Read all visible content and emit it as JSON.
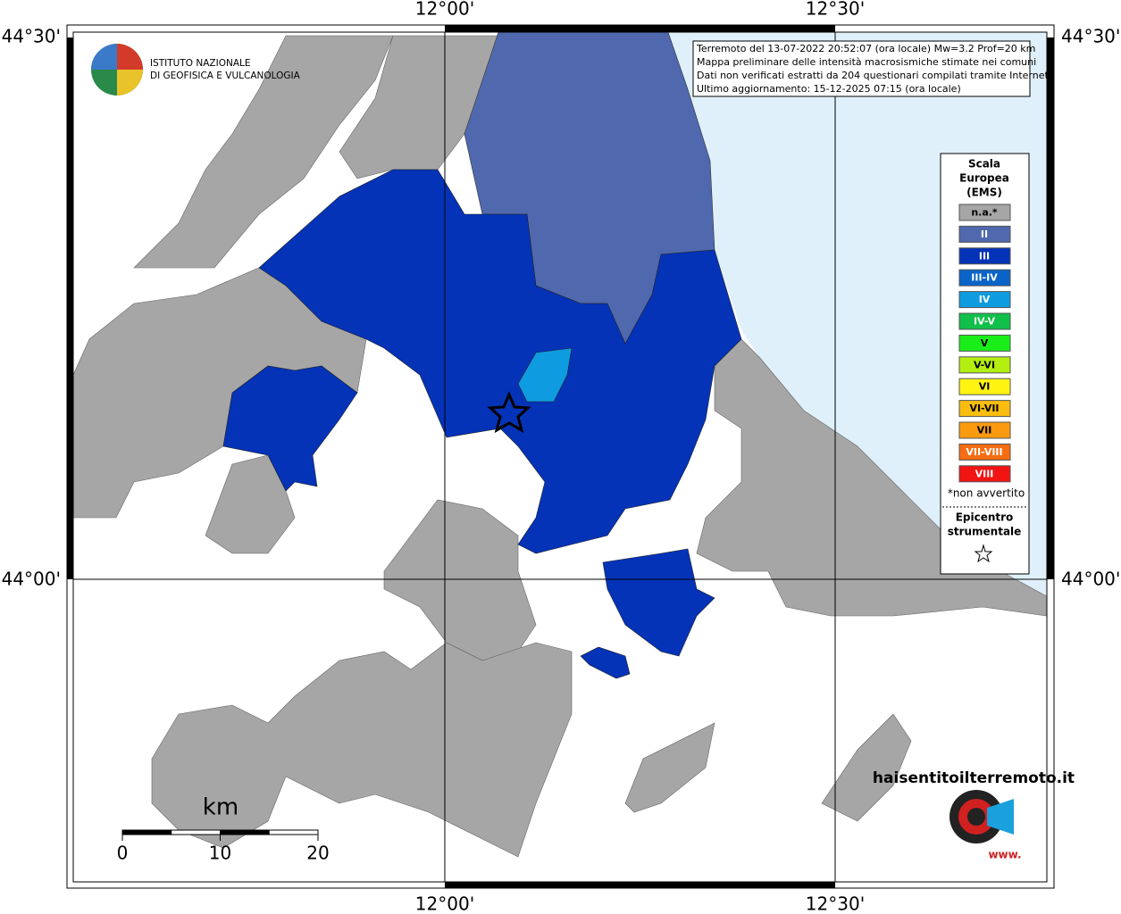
{
  "map": {
    "lon_labels": [
      "12°00'",
      "12°30'"
    ],
    "lat_labels": [
      "44°30'",
      "44°00'"
    ],
    "info": [
      "Terremoto del 13-07-2022 20:52:07 (ora locale) Mw=3.2 Prof=20 km",
      "Mappa preliminare delle intensità macrosismiche stimate nei comuni",
      "Dati non verificati estratti da 204 questionari compilati tramite Internet.",
      "Ultimo aggiornamento: 15-12-2025 07:15 (ora locale)"
    ],
    "logo": [
      "ISTITUTO NAZIONALE",
      "DI GEOFISICA E VULCANOLOGIA"
    ],
    "legend": {
      "title": [
        "Scala",
        "Europea",
        "(EMS)"
      ],
      "items": [
        {
          "label": "n.a.*",
          "color": "#a6a6a6"
        },
        {
          "label": "II",
          "color": "#5068ad"
        },
        {
          "label": "III",
          "color": "#0433b8"
        },
        {
          "label": "III-IV",
          "color": "#0a64c8"
        },
        {
          "label": "IV",
          "color": "#0f9be0"
        },
        {
          "label": "IV-V",
          "color": "#10c04a"
        },
        {
          "label": "V",
          "color": "#19ee19"
        },
        {
          "label": "V-VI",
          "color": "#b4ee10"
        },
        {
          "label": "VI",
          "color": "#fff312"
        },
        {
          "label": "VI-VII",
          "color": "#f8bd0e"
        },
        {
          "label": "VII",
          "color": "#fa9a0e"
        },
        {
          "label": "VII-VIII",
          "color": "#f76d12"
        },
        {
          "label": "VIII",
          "color": "#f21313"
        }
      ],
      "note": "*non avvertito",
      "epicenter": [
        "Epicentro",
        "strumentale"
      ]
    },
    "scale": {
      "unit": "km",
      "ticks": [
        0,
        10,
        20
      ]
    },
    "site": [
      "haisentitoilterremoto.it",
      "www."
    ]
  }
}
